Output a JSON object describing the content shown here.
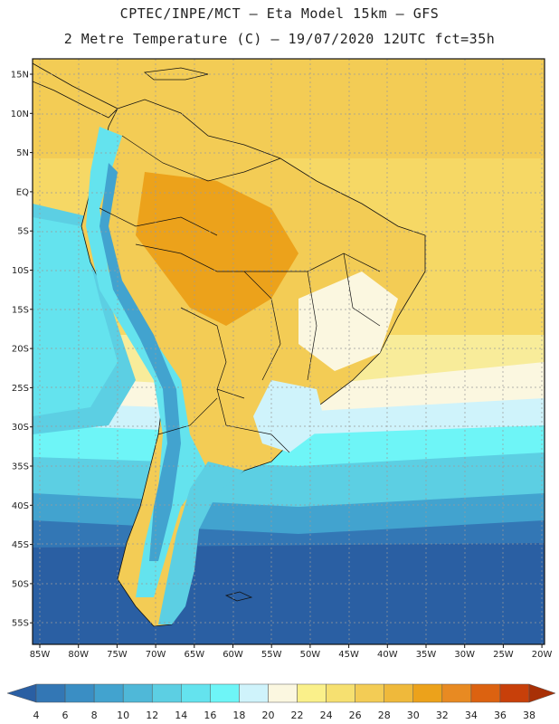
{
  "header": {
    "line1": "CPTEC/INPE/MCT –  Eta Model 15km – GFS",
    "line2": "2 Metre Temperature (C) – 19/07/2020 12UTC fct=35h"
  },
  "axes": {
    "lat_labels": [
      "15N",
      "10N",
      "5N",
      "EQ",
      "5S",
      "10S",
      "15S",
      "20S",
      "25S",
      "30S",
      "35S",
      "40S",
      "45S",
      "50S",
      "55S"
    ],
    "lon_labels": [
      "85W",
      "80W",
      "75W",
      "70W",
      "65W",
      "60W",
      "55W",
      "50W",
      "45W",
      "40W",
      "35W",
      "30W",
      "25W",
      "20W"
    ],
    "lat_range": [
      -57,
      16
    ],
    "lon_range": [
      -85,
      -20
    ]
  },
  "colorbar": {
    "labels": [
      "4",
      "6",
      "8",
      "10",
      "12",
      "14",
      "16",
      "18",
      "20",
      "22",
      "24",
      "26",
      "28",
      "30",
      "32",
      "34",
      "36",
      "38"
    ],
    "colors": [
      "#2a5fa3",
      "#3377b5",
      "#3a8ec4",
      "#42a3cf",
      "#4fb8d8",
      "#5ccfe3",
      "#64e3ee",
      "#6ef5f7",
      "#cff3fb",
      "#fbf7e0",
      "#faf08a",
      "#f6e070",
      "#f3cc55",
      "#efb93b",
      "#eca21b",
      "#e88a22",
      "#dc6210",
      "#c8400a",
      "#a83006"
    ]
  },
  "palette": {
    "ocean_cold": "#2a5fa3",
    "ocean_mid": "#3377b5",
    "ocean_cool": "#42a3cf",
    "ocean_light": "#5ccfe3",
    "ocean_cyan": "#6ef5f7",
    "warm_pale": "#fbf7e0",
    "warm_yellow": "#f6e070",
    "warm_gold": "#f3cc55",
    "warm_orange": "#efb93b",
    "land_hot": "#eca21b"
  }
}
